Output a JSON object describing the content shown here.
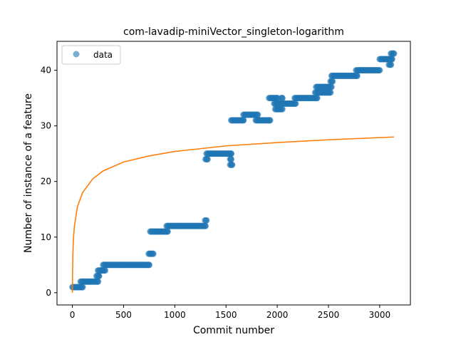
{
  "chart_data": {
    "type": "scatter",
    "title": "com-lavadip-miniVector_singleton-logarithm",
    "xlabel": "Commit number",
    "ylabel": "Number of instance of a feature",
    "xlim": [
      -150,
      3300
    ],
    "ylim": [
      -2.2,
      45.2
    ],
    "xticks": [
      0,
      500,
      1000,
      1500,
      2000,
      2500,
      3000
    ],
    "yticks": [
      0,
      10,
      20,
      30,
      40
    ],
    "grid": false,
    "legend": {
      "position": "top-left",
      "entries": [
        {
          "label": "data",
          "marker": "circle",
          "color": "#1f77b4"
        }
      ]
    },
    "series": [
      {
        "name": "data",
        "kind": "scatter",
        "color": "#1f77b4",
        "segments": [
          {
            "x_start": 0,
            "x_end": 100,
            "y": 1
          },
          {
            "x_start": 80,
            "x_end": 250,
            "y": 2
          },
          {
            "x_start": 235,
            "x_end": 260,
            "y": 3
          },
          {
            "x_start": 250,
            "x_end": 320,
            "y": 4
          },
          {
            "x_start": 300,
            "x_end": 750,
            "y": 5
          },
          {
            "x_start": 745,
            "x_end": 790,
            "y": 7
          },
          {
            "x_start": 760,
            "x_end": 930,
            "y": 11
          },
          {
            "x_start": 920,
            "x_end": 1300,
            "y": 12
          },
          {
            "x_start": 1295,
            "x_end": 1310,
            "y": 13
          },
          {
            "x_start": 1300,
            "x_end": 1320,
            "y": 24
          },
          {
            "x_start": 1310,
            "x_end": 1550,
            "y": 25
          },
          {
            "x_start": 1540,
            "x_end": 1550,
            "y": 24
          },
          {
            "x_start": 1540,
            "x_end": 1560,
            "y": 23
          },
          {
            "x_start": 1550,
            "x_end": 1670,
            "y": 31
          },
          {
            "x_start": 1670,
            "x_end": 1810,
            "y": 32
          },
          {
            "x_start": 1790,
            "x_end": 1930,
            "y": 31
          },
          {
            "x_start": 1920,
            "x_end": 2000,
            "y": 35
          },
          {
            "x_start": 1980,
            "x_end": 2050,
            "y": 33
          },
          {
            "x_start": 1970,
            "x_end": 2020,
            "y": 34
          },
          {
            "x_start": 2040,
            "x_end": 2050,
            "y": 35
          },
          {
            "x_start": 2030,
            "x_end": 2180,
            "y": 34
          },
          {
            "x_start": 2170,
            "x_end": 2390,
            "y": 35
          },
          {
            "x_start": 2370,
            "x_end": 2520,
            "y": 36
          },
          {
            "x_start": 2380,
            "x_end": 2530,
            "y": 37
          },
          {
            "x_start": 2520,
            "x_end": 2540,
            "y": 38
          },
          {
            "x_start": 2530,
            "x_end": 2780,
            "y": 39
          },
          {
            "x_start": 2770,
            "x_end": 3000,
            "y": 40
          },
          {
            "x_start": 3000,
            "x_end": 3120,
            "y": 42
          },
          {
            "x_start": 3090,
            "x_end": 3110,
            "y": 41
          },
          {
            "x_start": 3110,
            "x_end": 3140,
            "y": 43
          }
        ]
      },
      {
        "name": "",
        "kind": "line",
        "color": "#ff7f0e",
        "function": "logarithm",
        "x_range": [
          0,
          3140
        ],
        "points": [
          [
            0,
            0
          ],
          [
            2,
            3.5
          ],
          [
            5,
            6.9
          ],
          [
            10,
            9.5
          ],
          [
            20,
            12.0
          ],
          [
            50,
            15.5
          ],
          [
            100,
            18.0
          ],
          [
            200,
            20.5
          ],
          [
            300,
            21.9
          ],
          [
            500,
            23.5
          ],
          [
            750,
            24.6
          ],
          [
            1000,
            25.4
          ],
          [
            1500,
            26.4
          ],
          [
            2000,
            27.0
          ],
          [
            2500,
            27.5
          ],
          [
            3140,
            28.0
          ]
        ]
      }
    ]
  }
}
